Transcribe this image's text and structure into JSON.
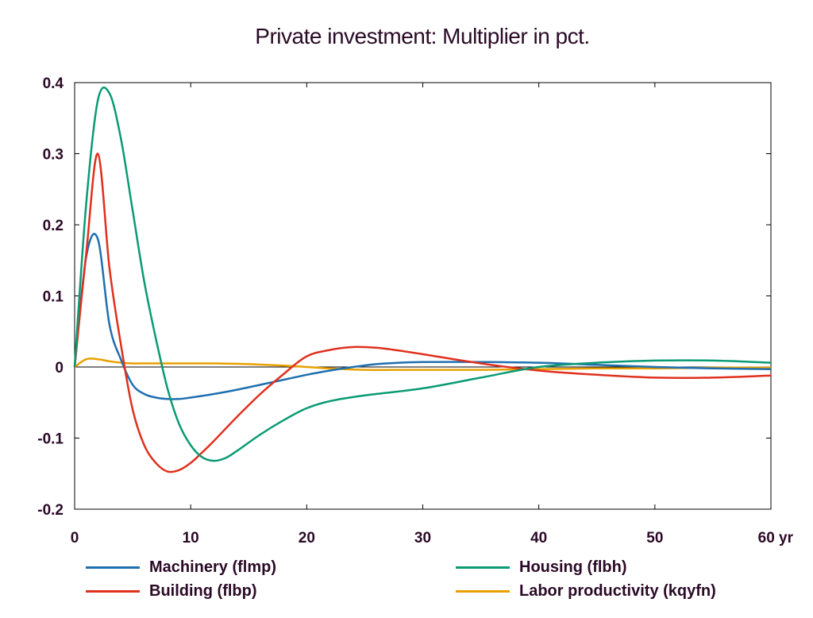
{
  "chart_data": {
    "type": "line",
    "title": "Private investment: Multiplier in pct.",
    "xlabel": "",
    "ylabel": "",
    "xlim": [
      0,
      60
    ],
    "ylim": [
      -0.2,
      0.4
    ],
    "x_ticks": [
      0,
      10,
      20,
      30,
      40,
      50,
      60
    ],
    "x_tick_labels": [
      "0",
      "10",
      "20",
      "30",
      "40",
      "50",
      "60 yr"
    ],
    "y_ticks": [
      -0.2,
      -0.1,
      0,
      0.1,
      0.2,
      0.3,
      0.4
    ],
    "y_tick_labels": [
      "-0.2",
      "-0.1",
      "0",
      "0.1",
      "0.2",
      "0.3",
      "0.4"
    ],
    "grid": false,
    "zero_line": true,
    "legend_placement": "bottom",
    "series": [
      {
        "name": "Machinery (flmp)",
        "color": "#1f6fb0",
        "x": [
          0,
          1,
          2,
          3,
          4,
          5,
          6,
          7,
          8,
          9,
          10,
          12,
          14,
          16,
          18,
          20,
          22,
          24,
          26,
          28,
          30,
          35,
          40,
          45,
          50,
          55,
          60
        ],
        "y": [
          0,
          0.155,
          0.18,
          0.06,
          0.01,
          -0.025,
          -0.038,
          -0.043,
          -0.045,
          -0.045,
          -0.043,
          -0.038,
          -0.032,
          -0.025,
          -0.018,
          -0.011,
          -0.005,
          0.0,
          0.004,
          0.006,
          0.007,
          0.007,
          0.006,
          0.003,
          0.0,
          -0.002,
          -0.003
        ]
      },
      {
        "name": "Building (flbp)",
        "color": "#e0301e",
        "x": [
          0,
          1,
          2,
          3,
          4,
          5,
          6,
          7,
          8,
          9,
          10,
          11,
          12,
          14,
          16,
          18,
          20,
          22,
          24,
          26,
          28,
          30,
          35,
          40,
          45,
          50,
          55,
          60
        ],
        "y": [
          0,
          0.16,
          0.3,
          0.14,
          0.03,
          -0.06,
          -0.11,
          -0.135,
          -0.147,
          -0.145,
          -0.135,
          -0.12,
          -0.104,
          -0.07,
          -0.038,
          -0.01,
          0.015,
          0.024,
          0.028,
          0.027,
          0.023,
          0.018,
          0.005,
          -0.005,
          -0.011,
          -0.015,
          -0.015,
          -0.012
        ]
      },
      {
        "name": "Housing (flbh)",
        "color": "#0a9a74",
        "x": [
          0,
          1,
          2,
          3,
          4,
          5,
          6,
          7,
          8,
          9,
          10,
          11,
          12,
          13,
          14,
          16,
          18,
          20,
          22,
          25,
          30,
          35,
          40,
          45,
          50,
          55,
          60
        ],
        "y": [
          0,
          0.23,
          0.375,
          0.385,
          0.32,
          0.22,
          0.12,
          0.04,
          -0.03,
          -0.08,
          -0.11,
          -0.127,
          -0.132,
          -0.128,
          -0.118,
          -0.095,
          -0.075,
          -0.058,
          -0.048,
          -0.04,
          -0.03,
          -0.015,
          0.0,
          0.006,
          0.009,
          0.009,
          0.006
        ]
      },
      {
        "name": "Labor productivity (kqyfn)",
        "color": "#e8a000",
        "x": [
          0,
          1,
          2,
          3,
          4,
          5,
          6,
          8,
          10,
          12,
          15,
          18,
          20,
          22,
          25,
          30,
          35,
          40,
          45,
          50,
          55,
          60
        ],
        "y": [
          0,
          0.011,
          0.011,
          0.008,
          0.006,
          0.005,
          0.005,
          0.005,
          0.005,
          0.005,
          0.004,
          0.002,
          0.0,
          -0.002,
          -0.004,
          -0.004,
          -0.004,
          -0.003,
          -0.002,
          -0.002,
          -0.001,
          -0.001
        ]
      }
    ]
  }
}
